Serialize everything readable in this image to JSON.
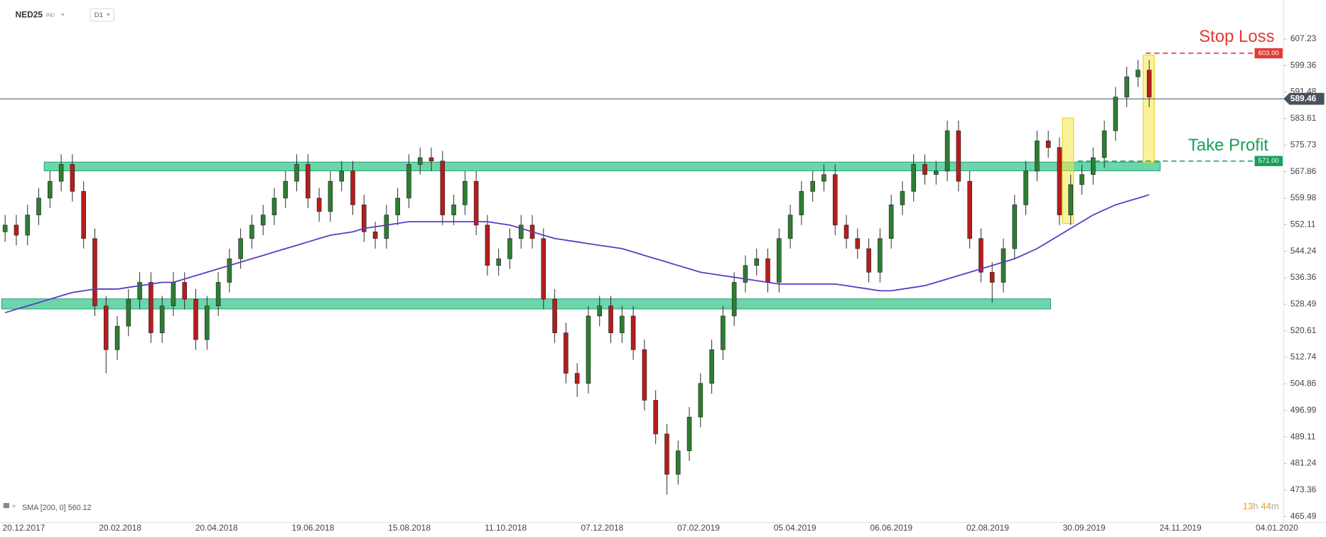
{
  "chart_data": {
    "type": "candlestick",
    "symbol": "NED25",
    "market": "IND",
    "interval": "D1",
    "x_labels": [
      "20.12.2017",
      "20.02.2018",
      "20.04.2018",
      "19.06.2018",
      "15.08.2018",
      "11.10.2018",
      "07.12.2018",
      "07.02.2019",
      "05.04.2019",
      "06.06.2019",
      "02.08.2019",
      "30.09.2019",
      "24.11.2019",
      "04.01.2020"
    ],
    "ylim": [
      463.7,
      618.8
    ],
    "yticks": [
      607.23,
      599.36,
      591.48,
      583.61,
      575.73,
      567.86,
      559.98,
      552.11,
      544.24,
      536.36,
      528.49,
      520.61,
      512.74,
      504.86,
      496.99,
      489.11,
      481.24,
      473.36,
      465.49
    ],
    "up_color": "#2e7d32",
    "down_color": "#b71c1c",
    "open": [
      550,
      552,
      549,
      555,
      560,
      565,
      570,
      562,
      548,
      528,
      515,
      522,
      530,
      535,
      520,
      528,
      535,
      530,
      518,
      528,
      535,
      542,
      548,
      552,
      555,
      560,
      565,
      570,
      560,
      556,
      565,
      568,
      558,
      550,
      548,
      555,
      560,
      570,
      572,
      571,
      555,
      558,
      565,
      552,
      540,
      542,
      548,
      552,
      548,
      530,
      520,
      508,
      505,
      525,
      528,
      520,
      525,
      515,
      500,
      490,
      478,
      485,
      495,
      505,
      515,
      525,
      535,
      540,
      542,
      535,
      548,
      555,
      562,
      565,
      567,
      552,
      548,
      545,
      538,
      548,
      558,
      562,
      570,
      567,
      568,
      580,
      565,
      548,
      538,
      535,
      545,
      558,
      568,
      577,
      575,
      555,
      564,
      567,
      572,
      580,
      590,
      596,
      598
    ],
    "high": [
      555,
      555,
      558,
      563,
      568,
      573,
      573,
      565,
      551,
      531,
      525,
      533,
      538,
      538,
      531,
      538,
      538,
      533,
      531,
      538,
      545,
      551,
      555,
      558,
      563,
      568,
      573,
      573,
      563,
      568,
      571,
      571,
      561,
      553,
      558,
      563,
      573,
      575,
      575,
      574,
      561,
      568,
      568,
      555,
      545,
      551,
      555,
      555,
      551,
      533,
      523,
      511,
      528,
      531,
      531,
      528,
      528,
      518,
      503,
      493,
      488,
      498,
      508,
      518,
      528,
      538,
      543,
      545,
      545,
      551,
      558,
      565,
      568,
      570,
      570,
      555,
      551,
      548,
      551,
      561,
      565,
      573,
      573,
      571,
      583,
      583,
      568,
      551,
      541,
      548,
      561,
      571,
      580,
      580,
      578,
      567,
      570,
      575,
      583,
      593,
      599,
      601,
      601
    ],
    "low": [
      547,
      546,
      546,
      552,
      557,
      562,
      559,
      545,
      525,
      508,
      512,
      519,
      527,
      517,
      517,
      525,
      527,
      515,
      515,
      525,
      532,
      539,
      545,
      549,
      552,
      557,
      562,
      557,
      553,
      553,
      562,
      555,
      547,
      545,
      545,
      552,
      557,
      567,
      568,
      552,
      552,
      555,
      549,
      537,
      537,
      539,
      545,
      545,
      527,
      517,
      505,
      501,
      502,
      522,
      517,
      517,
      512,
      497,
      487,
      472,
      475,
      482,
      492,
      502,
      512,
      522,
      532,
      537,
      532,
      532,
      545,
      552,
      559,
      562,
      549,
      545,
      542,
      535,
      535,
      545,
      555,
      559,
      564,
      564,
      565,
      562,
      545,
      535,
      529,
      532,
      542,
      555,
      565,
      572,
      552,
      552,
      561,
      564,
      569,
      577,
      587,
      593,
      587
    ],
    "close": [
      552,
      549,
      555,
      560,
      565,
      570,
      562,
      548,
      528,
      515,
      522,
      530,
      535,
      520,
      528,
      535,
      530,
      518,
      528,
      535,
      542,
      548,
      552,
      555,
      560,
      565,
      570,
      560,
      556,
      565,
      568,
      558,
      550,
      548,
      555,
      560,
      570,
      572,
      571,
      555,
      558,
      565,
      552,
      540,
      542,
      548,
      552,
      548,
      530,
      520,
      508,
      505,
      525,
      528,
      520,
      525,
      515,
      500,
      490,
      478,
      485,
      495,
      505,
      515,
      525,
      535,
      540,
      542,
      535,
      548,
      555,
      562,
      565,
      567,
      552,
      548,
      545,
      538,
      548,
      558,
      562,
      570,
      567,
      568,
      580,
      565,
      548,
      538,
      535,
      545,
      558,
      568,
      577,
      575,
      555,
      564,
      567,
      572,
      580,
      590,
      596,
      598,
      590
    ],
    "sma": {
      "label": "SMA [200, 0] 560.12",
      "color": "#5b3cc4",
      "values": [
        526,
        527,
        528,
        529,
        530,
        531,
        532,
        532.5,
        533,
        533,
        533,
        533.5,
        534,
        534.5,
        535,
        535,
        536,
        537,
        538,
        539,
        540,
        541,
        542,
        543,
        544,
        545,
        546,
        547,
        548,
        549,
        549.5,
        550,
        551,
        551.5,
        552,
        552.5,
        553,
        553,
        553,
        553,
        553,
        553,
        553,
        553,
        552.5,
        552,
        551,
        550,
        549,
        548,
        547.5,
        547,
        546.5,
        546,
        545.5,
        545,
        544,
        543,
        542,
        541,
        540,
        539,
        538,
        537.5,
        537,
        536.5,
        536,
        535.5,
        535,
        534.5,
        534.5,
        534.5,
        534.5,
        534.5,
        534.5,
        534,
        533.5,
        533,
        532.5,
        532.5,
        533,
        533.5,
        534,
        535,
        536,
        537,
        538,
        539,
        540,
        541,
        542,
        543.5,
        545,
        547,
        549,
        551,
        553,
        555,
        556.5,
        558,
        559,
        560,
        561
      ]
    },
    "bands": [
      {
        "low": 568.1,
        "high": 570.7
      },
      {
        "low": 527.1,
        "high": 530.1
      }
    ],
    "band_color": "#3cc78f",
    "current_price": 589.46,
    "stop_loss": {
      "name": "Stop Loss",
      "value": 603,
      "label": "603.00",
      "color": "#e53935"
    },
    "take_profit": {
      "name": "Take Profit",
      "value": 571,
      "label": "571.00",
      "color": "#17a05a"
    },
    "timer": {
      "hours": "13",
      "h": "h",
      "minutes": "44",
      "m": "m"
    }
  }
}
